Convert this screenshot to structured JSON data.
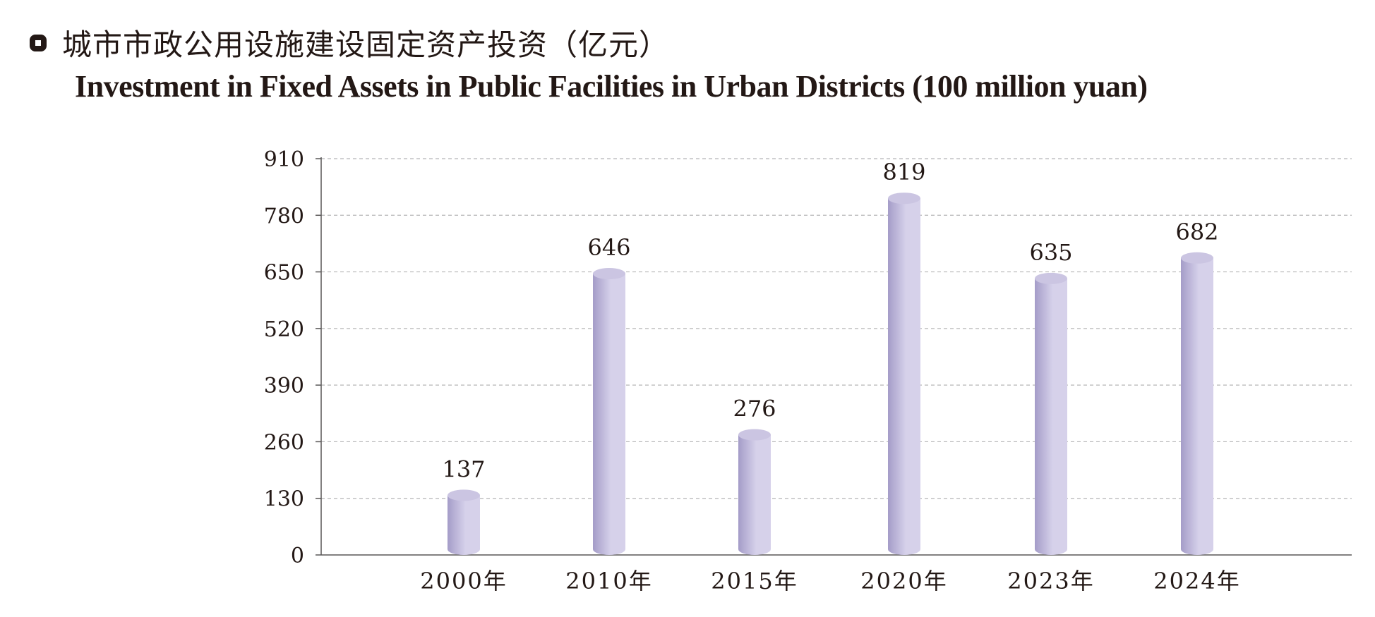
{
  "header": {
    "title_zh": "城市市政公用设施建设固定资产投资（亿元）",
    "title_en": "Investment in Fixed Assets in Public Facilities in Urban Districts (100 million yuan)"
  },
  "colors": {
    "bar_light": "#d6d1ea",
    "bar_dark": "#a49cc8",
    "bar_top": "#cbc5e2",
    "axis": "#595757",
    "grid": "#b5b5b6",
    "text": "#231815"
  },
  "chart_data": {
    "type": "bar",
    "title": "城市市政公用设施建设固定资产投资（亿元）",
    "subtitle": "Investment in Fixed Assets in Public Facilities in Urban Districts (100 million yuan)",
    "categories": [
      "2000年",
      "2010年",
      "2015年",
      "2020年",
      "2023年",
      "2024年"
    ],
    "values": [
      137,
      646,
      276,
      819,
      635,
      682
    ],
    "data_labels": [
      "137",
      "646",
      "276",
      "819",
      "635",
      "682"
    ],
    "yticks": [
      "0",
      "130",
      "260",
      "390",
      "520",
      "650",
      "780",
      "910"
    ],
    "ylim": [
      0,
      910
    ],
    "grid": "horizontal dashed",
    "legend": "none",
    "bar_style": "cylinder"
  }
}
